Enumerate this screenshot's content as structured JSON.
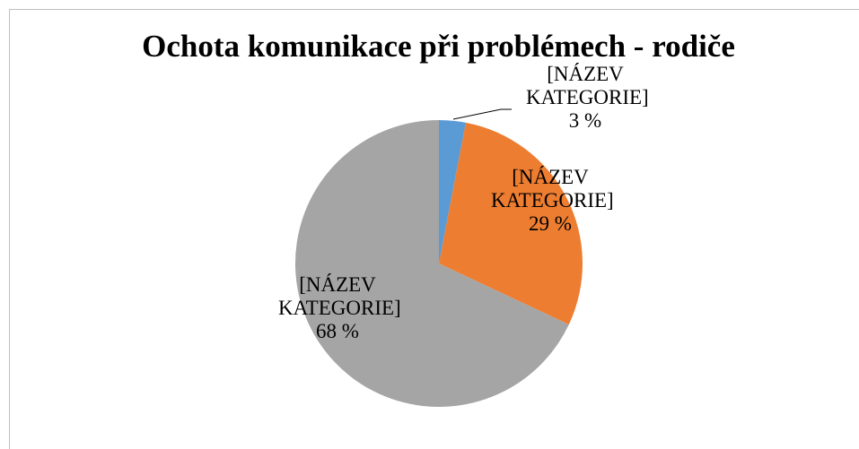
{
  "chart_data": {
    "type": "pie",
    "title": "Ochota komunikace při problémech - rodiče",
    "categories": [
      "[NÁZEV KATEGORIE]",
      "[NÁZEV KATEGORIE]",
      "[NÁZEV KATEGORIE]"
    ],
    "values": [
      3,
      29,
      68
    ],
    "value_labels": [
      "3 %",
      "29 %",
      "68 %"
    ],
    "colors": [
      "#5b9bd5",
      "#ed7d31",
      "#a5a5a5"
    ]
  }
}
